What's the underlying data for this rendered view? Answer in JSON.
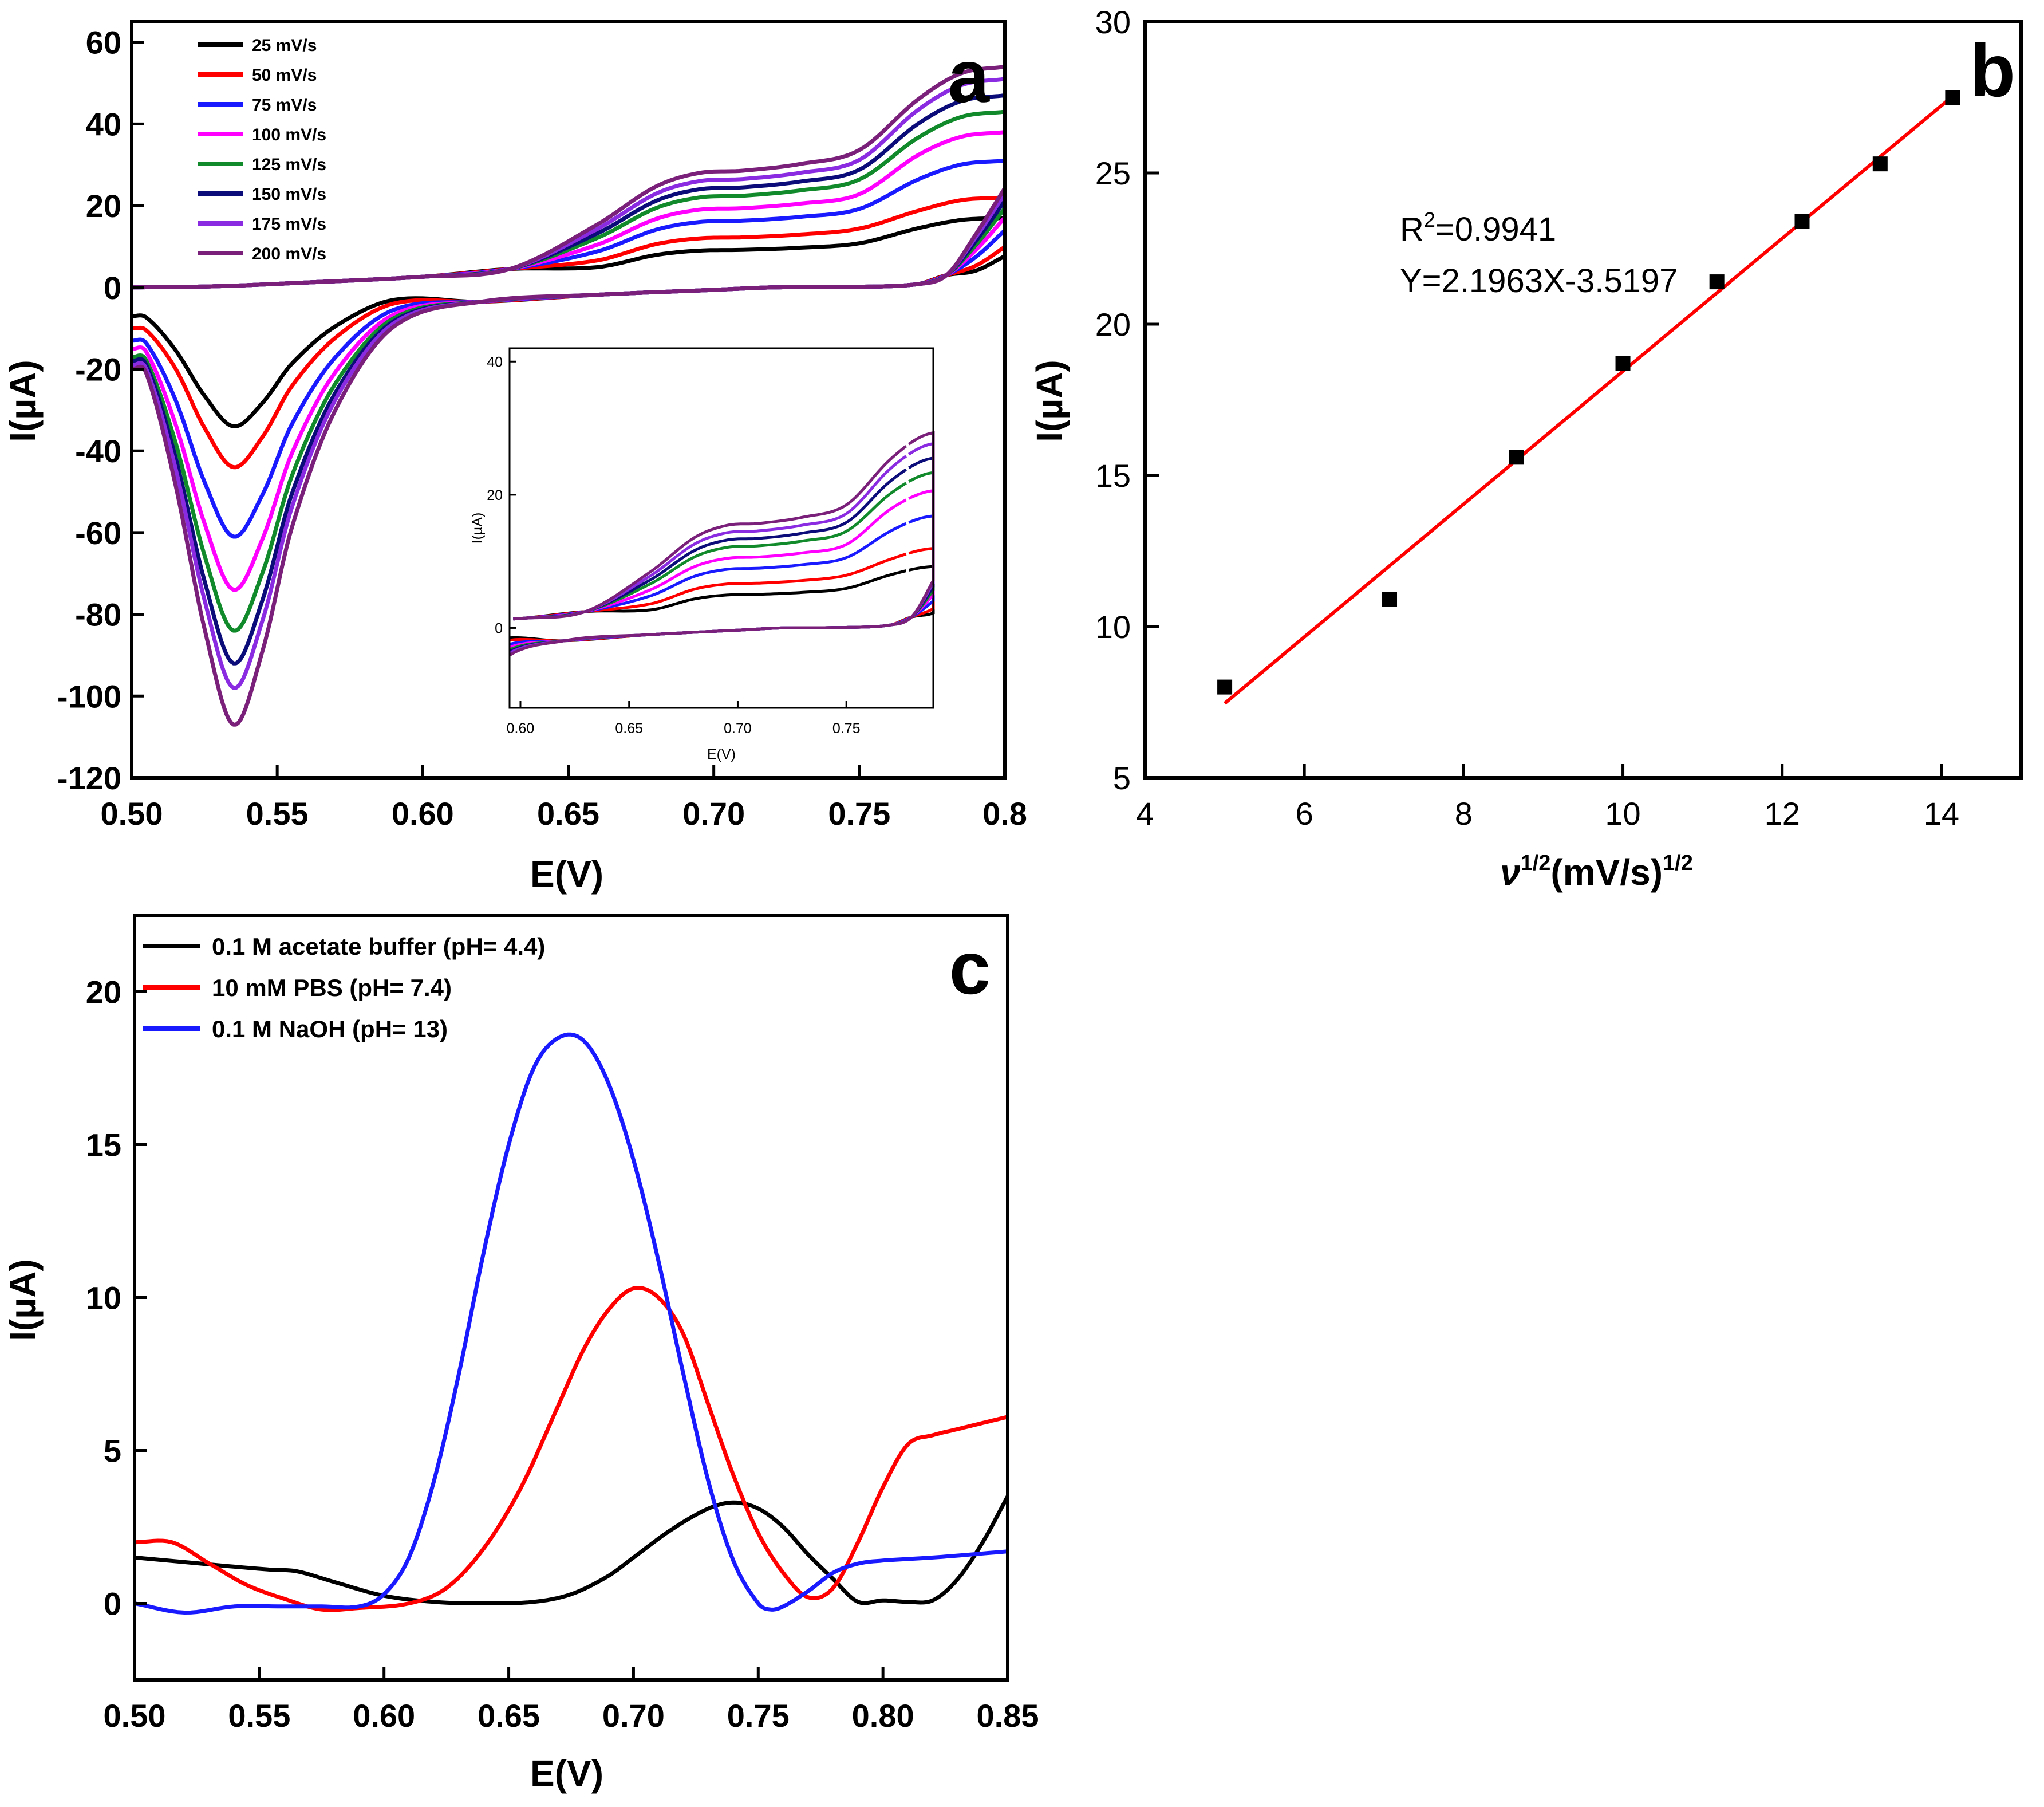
{
  "chart_data": [
    {
      "panel": "a",
      "type": "line",
      "panel_label": "a",
      "xlabel": "E(V)",
      "ylabel": "I(µA)",
      "xlim": [
        0.5,
        0.8
      ],
      "ylim": [
        -120,
        65
      ],
      "xticks": [
        "0.50",
        "0.55",
        "0.60",
        "0.65",
        "0.70",
        "0.75",
        "0.8"
      ],
      "yticks": [
        "60",
        "40",
        "20",
        "0",
        "-20",
        "-40",
        "-60",
        "-80",
        "-100",
        "-120"
      ],
      "ytick_values": [
        60,
        40,
        20,
        0,
        -20,
        -40,
        -60,
        -80,
        -100,
        -120
      ],
      "legend": {
        "position": "top-left",
        "entries": [
          {
            "label": "25   mV/s",
            "color": "#000000"
          },
          {
            "label": "50   mV/s",
            "color": "#ff0000"
          },
          {
            "label": "75   mV/s",
            "color": "#1a1aff"
          },
          {
            "label": "100 mV/s",
            "color": "#ff00ff"
          },
          {
            "label": "125 mV/s",
            "color": "#108a2a"
          },
          {
            "label": "150 mV/s",
            "color": "#0b0b7a"
          },
          {
            "label": "175 mV/s",
            "color": "#8a2be2"
          },
          {
            "label": "200 mV/s",
            "color": "#7a1f7a"
          }
        ]
      },
      "series": [
        {
          "name": "25 mV/s",
          "cathodic_peak": {
            "E": 0.535,
            "I": -34
          },
          "anodic_peak": {
            "E": 0.695,
            "I": 9
          },
          "upper_end": {
            "E": 0.8,
            "I": 17
          },
          "lower_start": {
            "E": 0.5,
            "I": -7
          }
        },
        {
          "name": "50 mV/s",
          "cathodic_peak": {
            "E": 0.535,
            "I": -44
          },
          "anodic_peak": {
            "E": 0.695,
            "I": 12
          },
          "upper_end": {
            "E": 0.8,
            "I": 22
          },
          "lower_start": {
            "E": 0.5,
            "I": -10
          }
        },
        {
          "name": "75 mV/s",
          "cathodic_peak": {
            "E": 0.535,
            "I": -61
          },
          "anodic_peak": {
            "E": 0.695,
            "I": 16
          },
          "upper_end": {
            "E": 0.8,
            "I": 31
          },
          "lower_start": {
            "E": 0.5,
            "I": -13
          }
        },
        {
          "name": "100 mV/s",
          "cathodic_peak": {
            "E": 0.535,
            "I": -74
          },
          "anodic_peak": {
            "E": 0.695,
            "I": 19
          },
          "upper_end": {
            "E": 0.8,
            "I": 38
          },
          "lower_start": {
            "E": 0.5,
            "I": -15
          }
        },
        {
          "name": "125 mV/s",
          "cathodic_peak": {
            "E": 0.535,
            "I": -84
          },
          "anodic_peak": {
            "E": 0.695,
            "I": 22
          },
          "upper_end": {
            "E": 0.8,
            "I": 43
          },
          "lower_start": {
            "E": 0.5,
            "I": -17
          }
        },
        {
          "name": "150 mV/s",
          "cathodic_peak": {
            "E": 0.535,
            "I": -92
          },
          "anodic_peak": {
            "E": 0.695,
            "I": 24
          },
          "upper_end": {
            "E": 0.8,
            "I": 47
          },
          "lower_start": {
            "E": 0.5,
            "I": -18
          }
        },
        {
          "name": "175 mV/s",
          "cathodic_peak": {
            "E": 0.535,
            "I": -98
          },
          "anodic_peak": {
            "E": 0.695,
            "I": 26
          },
          "upper_end": {
            "E": 0.8,
            "I": 51
          },
          "lower_start": {
            "E": 0.5,
            "I": -19
          }
        },
        {
          "name": "200 mV/s",
          "cathodic_peak": {
            "E": 0.535,
            "I": -107
          },
          "anodic_peak": {
            "E": 0.695,
            "I": 28
          },
          "upper_end": {
            "E": 0.8,
            "I": 54
          },
          "lower_start": {
            "E": 0.5,
            "I": -20
          }
        }
      ],
      "inset": {
        "xlabel": "E(V)",
        "ylabel": "I(µA)",
        "xlim": [
          0.595,
          0.79
        ],
        "ylim": [
          -12,
          42
        ],
        "xticks": [
          "0.60",
          "0.65",
          "0.70",
          "0.75"
        ],
        "yticks": [
          "40",
          "20",
          "0"
        ],
        "ytick_values": [
          40,
          20,
          0
        ]
      }
    },
    {
      "panel": "b",
      "type": "scatter",
      "panel_label": "b",
      "xlabel": "ν1/2(mV/s)1/2",
      "ylabel": "I(µA)",
      "xlim": [
        4,
        15
      ],
      "ylim": [
        5,
        30
      ],
      "xticks": [
        "4",
        "6",
        "8",
        "10",
        "12",
        "14"
      ],
      "yticks": [
        "30",
        "25",
        "20",
        "15",
        "10",
        "5"
      ],
      "points": [
        {
          "x": 5.0,
          "y": 8.0
        },
        {
          "x": 7.07,
          "y": 10.9
        },
        {
          "x": 8.66,
          "y": 15.6
        },
        {
          "x": 10.0,
          "y": 18.7
        },
        {
          "x": 11.18,
          "y": 21.4
        },
        {
          "x": 12.25,
          "y": 23.4
        },
        {
          "x": 13.23,
          "y": 25.3
        },
        {
          "x": 14.14,
          "y": 27.5
        }
      ],
      "fit": {
        "slope": 2.1963,
        "intercept": -3.5197,
        "x_range": [
          5.0,
          14.14
        ],
        "color": "#ff0000"
      },
      "annotation_r2": "R2=0.9941",
      "annotation_eq": "Y=2.1963X-3.5197"
    },
    {
      "panel": "c",
      "type": "line",
      "panel_label": "c",
      "xlabel": "E(V)",
      "ylabel": "I(µA)",
      "xlim": [
        0.5,
        0.85
      ],
      "ylim": [
        -2.5,
        22.5
      ],
      "xticks": [
        "0.50",
        "0.55",
        "0.60",
        "0.65",
        "0.70",
        "0.75",
        "0.80",
        "0.85"
      ],
      "yticks": [
        "20",
        "15",
        "10",
        "5",
        "0"
      ],
      "legend": {
        "position": "top-left",
        "entries": [
          {
            "label": "0.1 M acetate buffer (pH= 4.4)",
            "color": "#000000"
          },
          {
            "label": "10 mM PBS (pH= 7.4)",
            "color": "#ff0000"
          },
          {
            "label": "0.1 M NaOH (pH= 13)",
            "color": "#1a1aff"
          }
        ]
      },
      "series": [
        {
          "name": "0.1 M acetate buffer (pH= 4.4)",
          "color": "#000000",
          "x": [
            0.5,
            0.52,
            0.54,
            0.555,
            0.565,
            0.58,
            0.6,
            0.62,
            0.64,
            0.66,
            0.675,
            0.69,
            0.7,
            0.715,
            0.73,
            0.74,
            0.75,
            0.76,
            0.77,
            0.78,
            0.79,
            0.8,
            0.81,
            0.82,
            0.83,
            0.84,
            0.85
          ],
          "y": [
            1.5,
            1.35,
            1.2,
            1.1,
            1.05,
            0.7,
            0.25,
            0.05,
            0.0,
            0.05,
            0.3,
            0.9,
            1.5,
            2.4,
            3.1,
            3.3,
            3.1,
            2.5,
            1.6,
            0.8,
            0.05,
            0.1,
            0.05,
            0.1,
            0.8,
            2.0,
            3.5
          ]
        },
        {
          "name": "10 mM PBS (pH= 7.4)",
          "color": "#ff0000",
          "x": [
            0.5,
            0.515,
            0.53,
            0.545,
            0.56,
            0.575,
            0.59,
            0.61,
            0.625,
            0.64,
            0.655,
            0.67,
            0.68,
            0.69,
            0.7,
            0.71,
            0.72,
            0.73,
            0.74,
            0.75,
            0.76,
            0.77,
            0.78,
            0.79,
            0.8,
            0.81,
            0.82,
            0.83,
            0.84,
            0.85
          ],
          "y": [
            2.0,
            2.0,
            1.3,
            0.6,
            0.15,
            -0.2,
            -0.15,
            0.0,
            0.5,
            1.8,
            3.8,
            6.5,
            8.3,
            9.6,
            10.3,
            10.0,
            8.8,
            6.5,
            4.2,
            2.3,
            1.0,
            0.2,
            0.5,
            2.0,
            3.8,
            5.2,
            5.5,
            5.7,
            5.9,
            6.1
          ]
        },
        {
          "name": "0.1 M NaOH (pH= 13)",
          "color": "#1a1aff",
          "x": [
            0.5,
            0.52,
            0.54,
            0.56,
            0.575,
            0.59,
            0.6,
            0.61,
            0.62,
            0.63,
            0.64,
            0.65,
            0.66,
            0.67,
            0.68,
            0.69,
            0.7,
            0.71,
            0.72,
            0.73,
            0.74,
            0.75,
            0.755,
            0.76,
            0.77,
            0.78,
            0.79,
            0.8,
            0.82,
            0.85
          ],
          "y": [
            0.0,
            -0.3,
            -0.1,
            -0.1,
            -0.1,
            -0.1,
            0.3,
            1.5,
            4.0,
            7.5,
            11.5,
            15.0,
            17.5,
            18.5,
            18.4,
            17.0,
            14.5,
            11.2,
            7.5,
            4.0,
            1.4,
            0.0,
            -0.2,
            -0.1,
            0.4,
            1.0,
            1.3,
            1.4,
            1.5,
            1.7
          ]
        }
      ]
    }
  ]
}
